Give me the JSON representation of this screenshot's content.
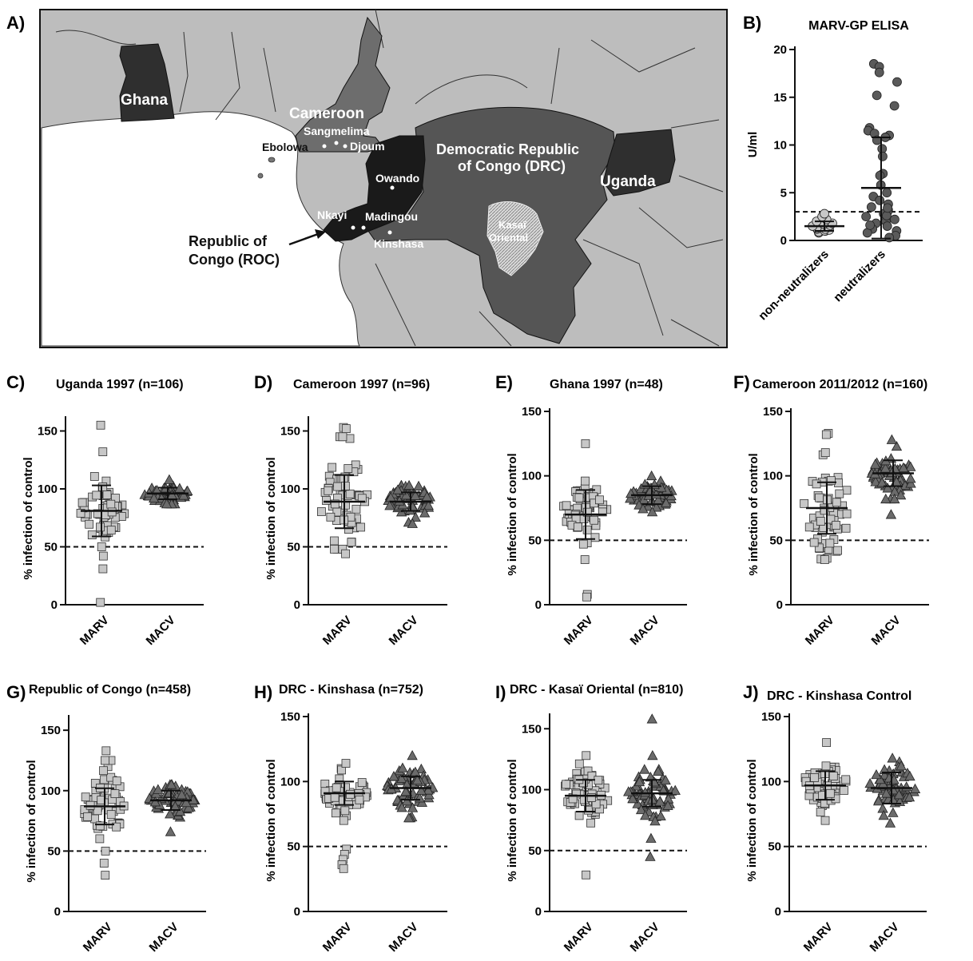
{
  "map": {
    "panel_label": "A)",
    "countries": [
      "Ghana",
      "Cameroon",
      "Democratic Republic",
      "of Congo (DRC)",
      "Uganda"
    ],
    "roc_label": [
      "Republic of",
      "Congo (ROC)"
    ],
    "cities": [
      "Sangmelima",
      "Ebolowa",
      "Djoum",
      "Owando",
      "Nkayi",
      "Madingou",
      "Kinshasa"
    ],
    "region_label": [
      "Kasaï",
      "Oriental"
    ],
    "colors": {
      "ocean": "#ffffff",
      "land": "#bdbdbd",
      "cameroon": "#6d6d6d",
      "drc": "#555555",
      "roc": "#1a1a1a",
      "ghana": "#2f2f2f",
      "uganda": "#2f2f2f",
      "kasai": "#cfcfcf"
    }
  },
  "chart_data": [
    {
      "panel": "B)",
      "type": "scatter",
      "title": "MARV-GP ELISA",
      "ylabel": "U/ml",
      "ylim": [
        0,
        20
      ],
      "yticks": [
        0,
        5,
        10,
        15,
        20
      ],
      "cutoff": 3,
      "groups": [
        {
          "name": "non-neutralizers",
          "marker": "circle",
          "color": "#c8c8c8",
          "mean": 1.5,
          "sd_low": 1.0,
          "sd_high": 2.0,
          "values": [
            0.8,
            0.9,
            1.0,
            1.0,
            1.1,
            1.2,
            1.2,
            1.3,
            1.4,
            1.5,
            1.6,
            1.7,
            1.8,
            2.0,
            2.2,
            2.5,
            2.8
          ]
        },
        {
          "name": "neutralizers",
          "marker": "circle",
          "color": "#5a5a5a",
          "mean": 5.5,
          "sd_low": 0.2,
          "sd_high": 10.8,
          "values": [
            18.5,
            18.2,
            17.6,
            16.6,
            15.2,
            14.1,
            11.8,
            11.5,
            11.2,
            11.0,
            10.8,
            10.5,
            9.6,
            8.8,
            7.0,
            6.8,
            5.8,
            5.0,
            4.6,
            4.2,
            3.8,
            3.5,
            3.2,
            3.0,
            2.8,
            2.5,
            2.2,
            2.0,
            1.8,
            1.5,
            1.2,
            1.0,
            0.8,
            0.5,
            0.3,
            2.6,
            3.4,
            1.6
          ]
        }
      ]
    },
    {
      "panel": "C)",
      "title": "Uganda 1997 (n=106)",
      "type": "scatter",
      "ylabel": "% infection of control",
      "ylim": [
        0,
        160
      ],
      "yticks": [
        0,
        50,
        100,
        150
      ],
      "cutoff": 50,
      "categories": [
        "MARV",
        "MACV"
      ],
      "MARV": {
        "center": 82,
        "spread": 12,
        "min": 50,
        "max": 132,
        "outliers": [
          155,
          42,
          31,
          2
        ],
        "mean": 81,
        "sd": 22
      },
      "MACV": {
        "center": 96,
        "spread": 4,
        "min": 87,
        "max": 108,
        "outliers": [],
        "mean": 96,
        "sd": 5
      }
    },
    {
      "panel": "D)",
      "title": "Cameroon 1997 (n=96)",
      "type": "scatter",
      "ylabel": "% infection of control",
      "ylim": [
        0,
        160
      ],
      "yticks": [
        0,
        50,
        100,
        150
      ],
      "cutoff": 50,
      "categories": [
        "MARV",
        "MACV"
      ],
      "MARV": {
        "center": 88,
        "spread": 20,
        "min": 48,
        "max": 145,
        "outliers": [
          153,
          152,
          44
        ],
        "mean": 89,
        "sd": 23
      },
      "MACV": {
        "center": 89,
        "spread": 7,
        "min": 70,
        "max": 103,
        "outliers": [],
        "mean": 89,
        "sd": 8
      }
    },
    {
      "panel": "E)",
      "title": "Ghana 1997 (n=48)",
      "type": "scatter",
      "ylabel": "% infection of control",
      "ylim": [
        0,
        150
      ],
      "yticks": [
        0,
        50,
        100,
        150
      ],
      "cutoff": 50,
      "categories": [
        "MARV",
        "MACV"
      ],
      "MARV": {
        "center": 72,
        "spread": 10,
        "min": 48,
        "max": 96,
        "outliers": [
          125,
          47,
          35,
          8,
          6
        ],
        "mean": 70,
        "sd": 19
      },
      "MACV": {
        "center": 85,
        "spread": 5,
        "min": 72,
        "max": 100,
        "outliers": [],
        "mean": 85,
        "sd": 7
      }
    },
    {
      "panel": "F)",
      "title": "Cameroon 2011/2012 (n=160)",
      "type": "scatter",
      "ylabel": "% infection of control",
      "ylim": [
        0,
        150
      ],
      "yticks": [
        0,
        50,
        100,
        150
      ],
      "cutoff": 50,
      "categories": [
        "MARV",
        "MACV"
      ],
      "MARV": {
        "center": 75,
        "spread": 18,
        "min": 35,
        "max": 118,
        "outliers": [
          133,
          132
        ],
        "mean": 75,
        "sd": 20
      },
      "MACV": {
        "center": 102,
        "spread": 8,
        "min": 82,
        "max": 128,
        "outliers": [
          70
        ],
        "mean": 102,
        "sd": 10
      }
    },
    {
      "panel": "G)",
      "title": "Republic of Congo (n=458)",
      "type": "scatter",
      "ylabel": "% infection of control",
      "ylim": [
        0,
        160
      ],
      "yticks": [
        0,
        50,
        100,
        150
      ],
      "cutoff": 50,
      "categories": [
        "MARV",
        "MACV"
      ],
      "MARV": {
        "center": 88,
        "spread": 12,
        "min": 50,
        "max": 125,
        "outliers": [
          133,
          40,
          30
        ],
        "mean": 87,
        "sd": 15
      },
      "MACV": {
        "center": 92,
        "spread": 7,
        "min": 66,
        "max": 105,
        "outliers": [],
        "mean": 92,
        "sd": 8
      }
    },
    {
      "panel": "H)",
      "title": "DRC - Kinshasa (n=752)",
      "type": "scatter",
      "ylabel": "% infection of control",
      "ylim": [
        0,
        150
      ],
      "yticks": [
        0,
        50,
        100,
        150
      ],
      "cutoff": 50,
      "categories": [
        "MARV",
        "MACV"
      ],
      "MARV": {
        "center": 92,
        "spread": 7,
        "min": 70,
        "max": 114,
        "outliers": [
          48,
          44,
          40,
          36,
          33
        ],
        "mean": 91,
        "sd": 9
      },
      "MACV": {
        "center": 95,
        "spread": 8,
        "min": 72,
        "max": 120,
        "outliers": [],
        "mean": 95,
        "sd": 9
      }
    },
    {
      "panel": "I)",
      "title": "DRC - Kasaï Oriental (n=810)",
      "type": "scatter",
      "ylabel": "% infection of control",
      "ylim": [
        0,
        160
      ],
      "yticks": [
        0,
        50,
        100,
        150
      ],
      "cutoff": 50,
      "categories": [
        "MARV",
        "MACV"
      ],
      "MARV": {
        "center": 96,
        "spread": 10,
        "min": 30,
        "max": 128,
        "outliers": [],
        "mean": 95,
        "sd": 13
      },
      "MACV": {
        "center": 97,
        "spread": 9,
        "min": 60,
        "max": 128,
        "outliers": [
          158,
          45
        ],
        "mean": 97,
        "sd": 11
      }
    },
    {
      "panel": "J)",
      "title": "DRC - Kinshasa Control",
      "type": "scatter",
      "ylabel": "% infection of control",
      "ylim": [
        0,
        150
      ],
      "yticks": [
        0,
        50,
        100,
        150
      ],
      "cutoff": 50,
      "categories": [
        "MARV",
        "MACV"
      ],
      "MARV": {
        "center": 97,
        "spread": 8,
        "min": 70,
        "max": 112,
        "outliers": [
          130
        ],
        "mean": 97,
        "sd": 11
      },
      "MACV": {
        "center": 95,
        "spread": 10,
        "min": 68,
        "max": 118,
        "outliers": [],
        "mean": 95,
        "sd": 12
      }
    }
  ]
}
